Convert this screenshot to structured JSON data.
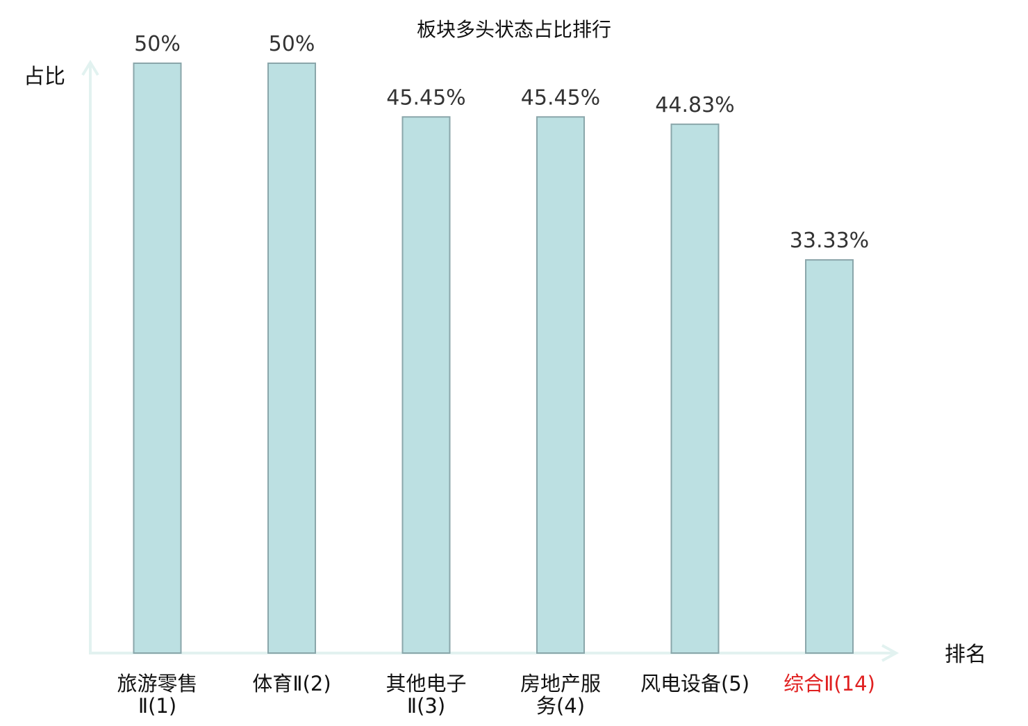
{
  "chart_data": {
    "type": "bar",
    "title": "板块多头状态占比排行",
    "xlabel": "排名",
    "ylabel": "占比",
    "categories": [
      {
        "lines": [
          "旅游零售",
          "Ⅱ(1)"
        ],
        "highlight": false
      },
      {
        "lines": [
          "体育Ⅱ(2)"
        ],
        "highlight": false
      },
      {
        "lines": [
          "其他电子",
          "Ⅱ(3)"
        ],
        "highlight": false
      },
      {
        "lines": [
          "房地产服",
          "务(4)"
        ],
        "highlight": false
      },
      {
        "lines": [
          "风电设备(5)"
        ],
        "highlight": false
      },
      {
        "lines": [
          "综合Ⅱ(14)"
        ],
        "highlight": true
      }
    ],
    "values": [
      50,
      50,
      45.45,
      45.45,
      44.83,
      33.33
    ],
    "value_labels": [
      "50%",
      "50%",
      "45.45%",
      "45.45%",
      "44.83%",
      "33.33%"
    ],
    "ylim": [
      0,
      50
    ],
    "grid": false,
    "colors": {
      "bar_fill": "#bce0e2",
      "bar_stroke": "#8aa6aa",
      "axis": "#e2f2f0",
      "label_text": "#333333",
      "tick_text": "#111111",
      "highlight_text": "#e02020"
    }
  }
}
